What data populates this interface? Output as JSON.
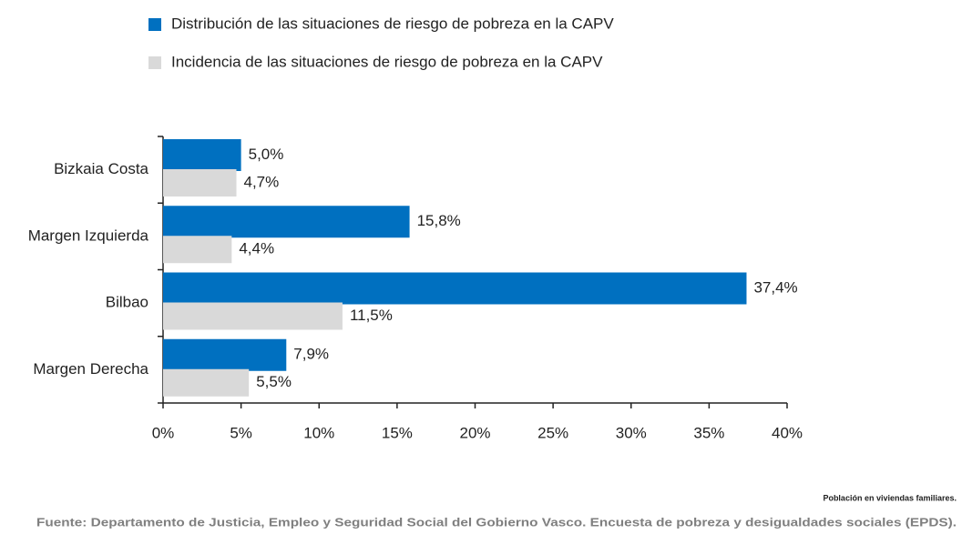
{
  "chart_data": {
    "type": "barh",
    "categories": [
      "Bizkaia Costa",
      "Margen Izquierda",
      "Bilbao",
      "Margen Derecha"
    ],
    "series": [
      {
        "name": "Distribución de las situaciones de riesgo de pobreza en la CAPV",
        "color": "#0070c0",
        "values": [
          5.0,
          15.8,
          37.4,
          7.9
        ],
        "value_labels": [
          "5,0%",
          "15,8%",
          "37,4%",
          "7,9%"
        ]
      },
      {
        "name": "Incidencia de las situaciones de riesgo de pobreza en la CAPV",
        "color": "#d9d9d9",
        "values": [
          4.7,
          4.4,
          11.5,
          5.5
        ],
        "value_labels": [
          "4,7%",
          "4,4%",
          "11,5%",
          "5,5%"
        ]
      }
    ],
    "xlim": [
      0,
      40
    ],
    "xticks": [
      {
        "value": 0,
        "label": "0%"
      },
      {
        "value": 5,
        "label": "5%"
      },
      {
        "value": 10,
        "label": "10%"
      },
      {
        "value": 15,
        "label": "15%"
      },
      {
        "value": 20,
        "label": "20%"
      },
      {
        "value": 25,
        "label": "25%"
      },
      {
        "value": 30,
        "label": "30%"
      },
      {
        "value": 35,
        "label": "35%"
      },
      {
        "value": 40,
        "label": "40%"
      }
    ],
    "grid": false,
    "legend": "top",
    "note": "Población en viviendas familiares.",
    "source": "Fuente: Departamento de Justicia, Empleo y Seguridad Social del Gobierno Vasco. Encuesta de pobreza y desigualdades sociales (EPDS)."
  }
}
